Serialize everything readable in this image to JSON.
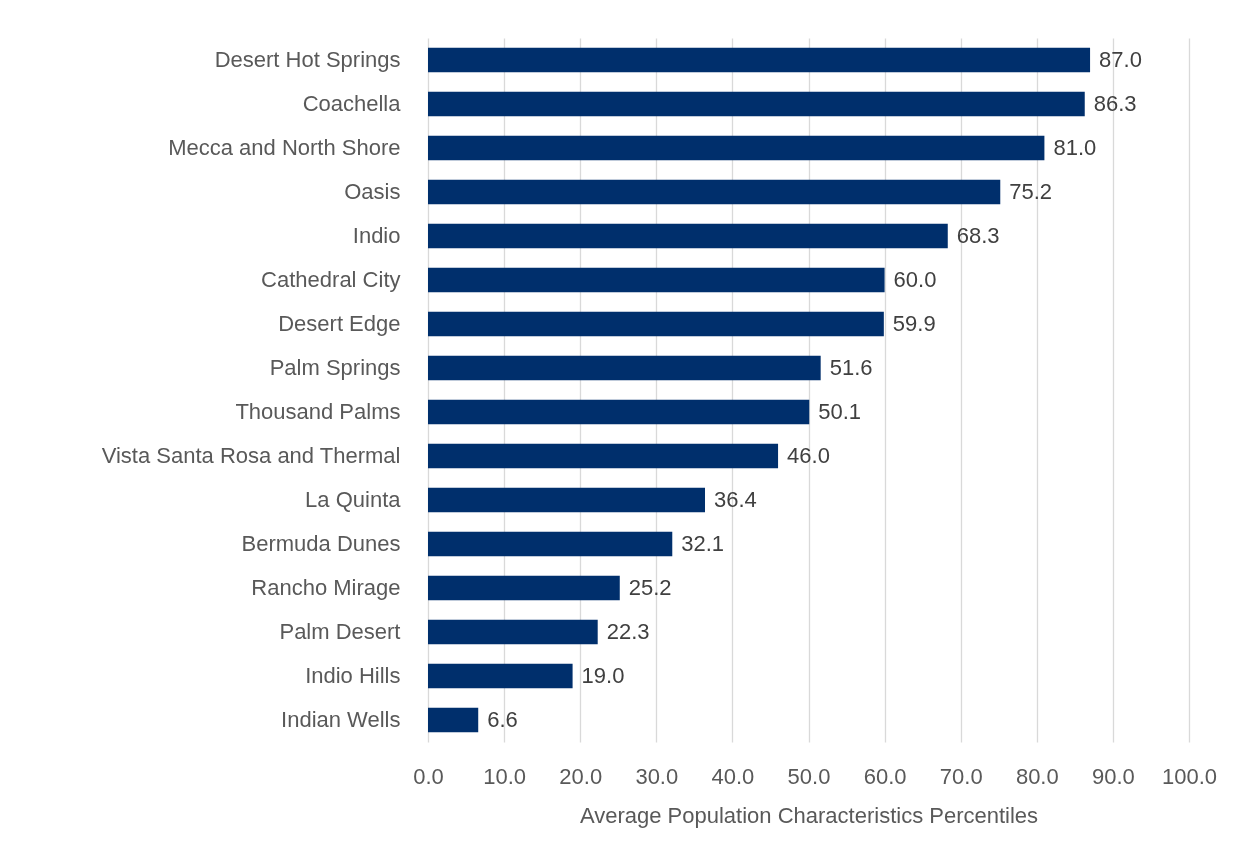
{
  "chart_data": {
    "type": "bar",
    "orientation": "horizontal",
    "categories": [
      "Desert Hot Springs",
      "Coachella",
      "Mecca and North Shore",
      "Oasis",
      "Indio",
      "Cathedral City",
      "Desert Edge",
      "Palm Springs",
      "Thousand Palms",
      "Vista Santa Rosa and Thermal",
      "La Quinta",
      "Bermuda Dunes",
      "Rancho Mirage",
      "Palm Desert",
      "Indio Hills",
      "Indian Wells"
    ],
    "values": [
      87.0,
      86.3,
      81.0,
      75.2,
      68.3,
      60.0,
      59.9,
      51.6,
      50.1,
      46.0,
      36.4,
      32.1,
      25.2,
      22.3,
      19.0,
      6.6
    ],
    "value_labels": [
      "87.0",
      "86.3",
      "81.0",
      "75.2",
      "68.3",
      "60.0",
      "59.9",
      "51.6",
      "50.1",
      "46.0",
      "36.4",
      "32.1",
      "25.2",
      "22.3",
      "19.0",
      "6.6"
    ],
    "color": "#002f6c",
    "xlim": [
      0,
      100
    ],
    "xticks": [
      {
        "value": 0,
        "label": "0.0"
      },
      {
        "value": 10,
        "label": "10.0"
      },
      {
        "value": 20,
        "label": "20.0"
      },
      {
        "value": 30,
        "label": "30.0"
      },
      {
        "value": 40,
        "label": "40.0"
      },
      {
        "value": 50,
        "label": "50.0"
      },
      {
        "value": 60,
        "label": "60.0"
      },
      {
        "value": 70,
        "label": "70.0"
      },
      {
        "value": 80,
        "label": "80.0"
      },
      {
        "value": 90,
        "label": "90.0"
      },
      {
        "value": 100,
        "label": "100.0"
      }
    ],
    "xlabel": "Average Population Characteristics Percentiles",
    "grid": "x"
  }
}
